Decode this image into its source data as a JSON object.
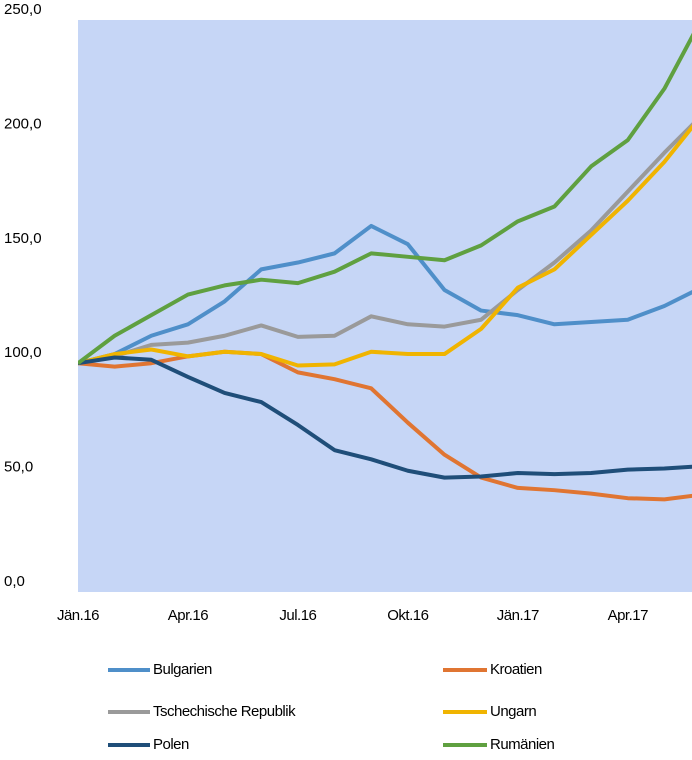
{
  "chart_data": {
    "type": "line",
    "categories": [
      "Jän.16",
      null,
      null,
      "Apr.16",
      null,
      null,
      "Jul.16",
      null,
      null,
      "Okt.16",
      null,
      null,
      "Jän.17",
      null,
      null,
      "Apr.17",
      null,
      null
    ],
    "series": [
      {
        "name": "Bulgarien",
        "color": "#4f8fc9",
        "values": [
          100,
          104,
          112,
          117,
          127,
          141,
          144,
          148,
          160,
          152,
          132,
          123,
          121,
          117,
          118,
          119,
          125,
          133
        ]
      },
      {
        "name": "Kroatien",
        "color": "#e07532",
        "values": [
          100,
          98.5,
          100,
          103,
          105,
          104,
          96,
          93,
          89,
          74,
          60,
          50,
          45.5,
          44.5,
          43,
          41,
          40.5,
          42.5
        ]
      },
      {
        "name": "Tschechische Republik",
        "color": "#9a9a9a",
        "values": [
          100,
          103,
          108,
          109,
          112,
          116.5,
          111.5,
          112,
          120.5,
          117,
          116,
          119,
          132,
          144,
          158,
          175,
          192,
          208
        ]
      },
      {
        "name": "Ungarn",
        "color": "#f0b400",
        "values": [
          100,
          104,
          106,
          103,
          105,
          104,
          99,
          99.5,
          105,
          104,
          104,
          115,
          133,
          141,
          156,
          171,
          188,
          208
        ]
      },
      {
        "name": "Polen",
        "color": "#1f4e79",
        "values": [
          100,
          102.5,
          101.5,
          94,
          87,
          83,
          73,
          62,
          58,
          53,
          50,
          50.5,
          52,
          51.5,
          52,
          53.5,
          54,
          55
        ]
      },
      {
        "name": "Rumänien",
        "color": "#5fa040",
        "values": [
          100,
          112,
          121,
          130,
          134,
          136.5,
          135,
          140,
          148,
          146.5,
          145,
          151.5,
          162,
          168.5,
          186,
          197.5,
          220,
          250
        ]
      }
    ],
    "ylim": [
      0,
      250
    ],
    "yticks": [
      {
        "value": 0,
        "label": "0,0"
      },
      {
        "value": 50,
        "label": "50,0"
      },
      {
        "value": 100,
        "label": "100,0"
      },
      {
        "value": 150,
        "label": "150,0"
      },
      {
        "value": 200,
        "label": "200,0"
      },
      {
        "value": 250,
        "label": "250,0"
      }
    ],
    "grid": false,
    "background": "#c6d6f6"
  }
}
